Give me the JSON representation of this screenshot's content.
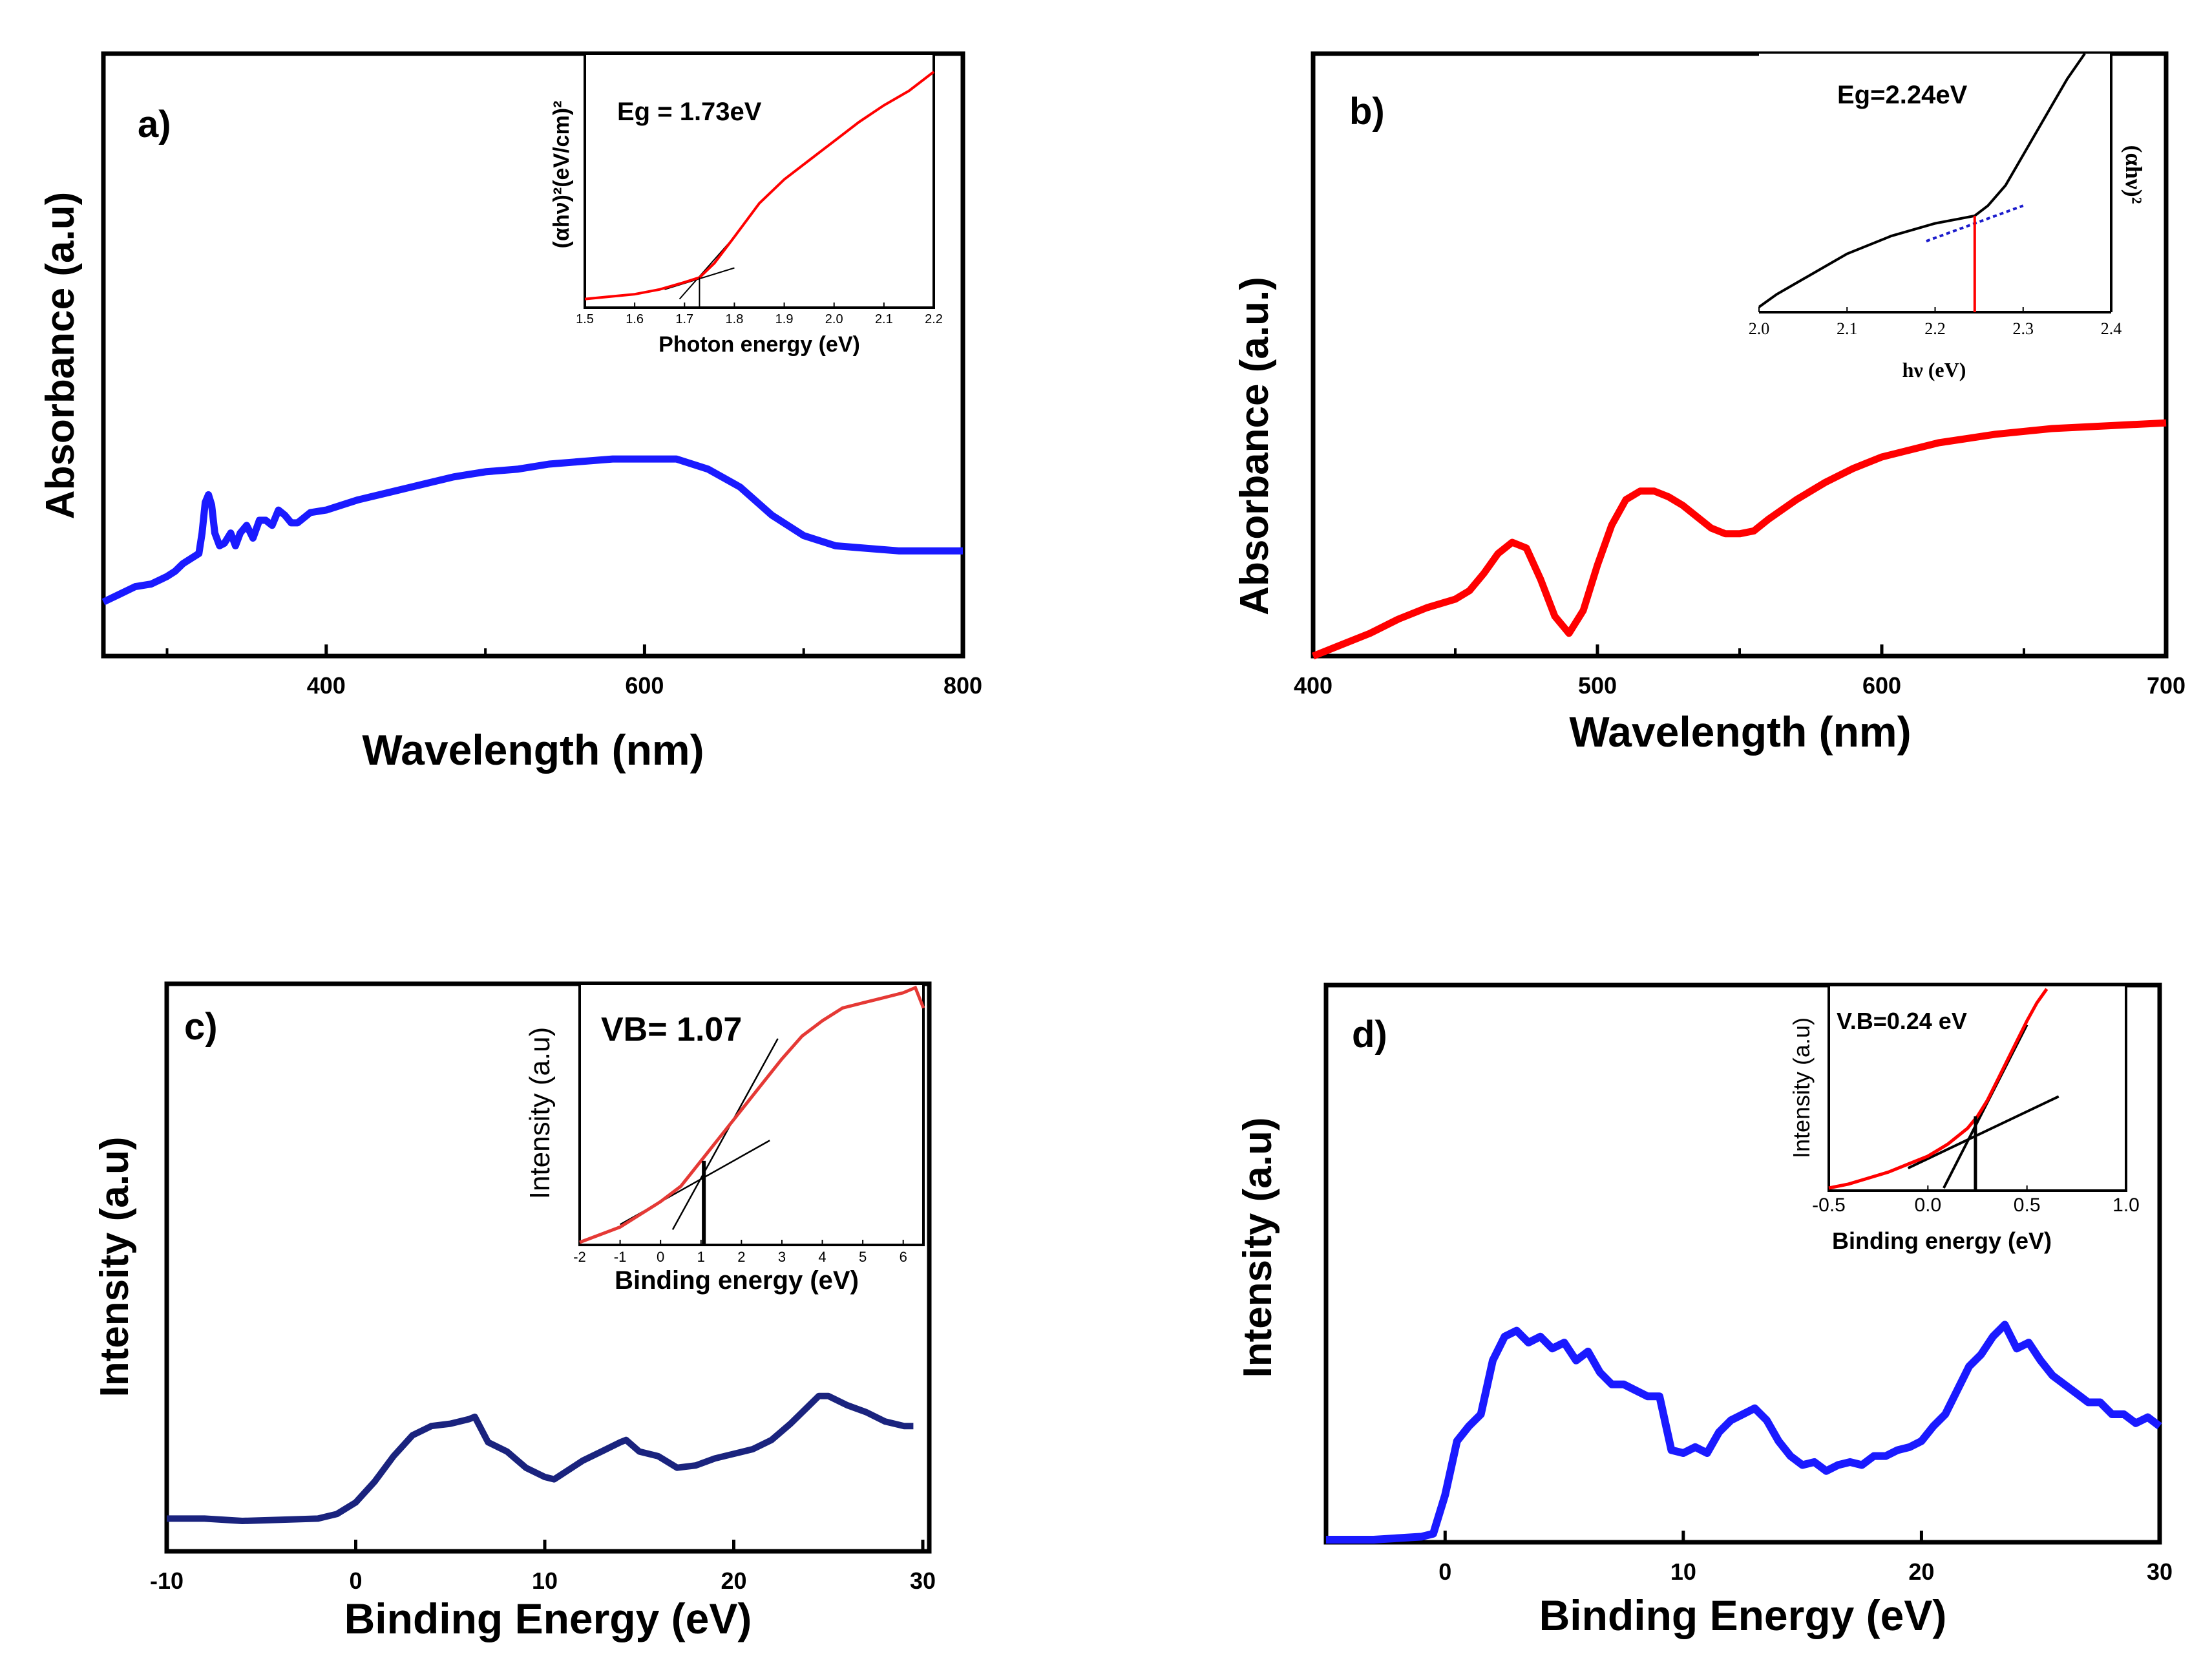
{
  "chart_data": [
    {
      "id": "a",
      "type": "line",
      "panel_label": "a)",
      "xlabel": "Wavelength (nm)",
      "ylabel": "Absorbance (a.u)",
      "xlim": [
        260,
        800
      ],
      "ylim": [
        0,
        1
      ],
      "xticks": [
        400,
        600,
        800
      ],
      "minor_xticks": [
        300,
        500,
        700
      ],
      "color": "#1a1aff",
      "series": [
        {
          "name": "absorbance",
          "x": [
            260,
            270,
            280,
            290,
            300,
            305,
            310,
            315,
            320,
            322,
            324,
            326,
            328,
            330,
            333,
            336,
            340,
            343,
            346,
            350,
            354,
            358,
            362,
            366,
            370,
            374,
            378,
            382,
            390,
            400,
            420,
            440,
            460,
            480,
            490,
            500,
            520,
            540,
            560,
            580,
            600,
            620,
            640,
            660,
            680,
            700,
            720,
            740,
            760,
            780,
            800
          ],
          "y": [
            0.06,
            0.09,
            0.12,
            0.13,
            0.16,
            0.18,
            0.21,
            0.23,
            0.25,
            0.33,
            0.45,
            0.48,
            0.44,
            0.33,
            0.28,
            0.29,
            0.33,
            0.28,
            0.33,
            0.36,
            0.31,
            0.38,
            0.38,
            0.36,
            0.42,
            0.4,
            0.37,
            0.37,
            0.41,
            0.42,
            0.46,
            0.49,
            0.52,
            0.55,
            0.56,
            0.57,
            0.58,
            0.6,
            0.61,
            0.62,
            0.62,
            0.62,
            0.58,
            0.51,
            0.4,
            0.32,
            0.28,
            0.27,
            0.26,
            0.26,
            0.26
          ]
        }
      ],
      "inset": {
        "xlabel": "Photon energy (eV)",
        "ylabel": "(αhν)²(eV/cm)²",
        "annotation": "Eg = 1.73eV",
        "xlim": [
          1.5,
          2.2
        ],
        "ylim": [
          0,
          1
        ],
        "xticks": [
          "1.5",
          "1.6",
          "1.7",
          "1.8",
          "1.9",
          "2.0",
          "2.1",
          "2.2"
        ],
        "eg": 1.73,
        "series": [
          {
            "name": "tauc",
            "color": "#ff0000",
            "x": [
              1.5,
              1.55,
              1.6,
              1.65,
              1.7,
              1.73,
              1.76,
              1.8,
              1.85,
              1.9,
              1.95,
              2.0,
              2.05,
              2.1,
              2.15,
              2.2
            ],
            "y": [
              0.02,
              0.03,
              0.04,
              0.06,
              0.09,
              0.11,
              0.17,
              0.28,
              0.42,
              0.52,
              0.6,
              0.68,
              0.76,
              0.83,
              0.89,
              0.97
            ]
          }
        ]
      }
    },
    {
      "id": "b",
      "type": "line",
      "panel_label": "b)",
      "xlabel": "Wavelength (nm)",
      "ylabel": "Absorbance (a.u.)",
      "xlim": [
        400,
        700
      ],
      "ylim": [
        0,
        1
      ],
      "xticks": [
        400,
        500,
        600,
        700
      ],
      "minor_xticks": [
        450,
        550,
        650
      ],
      "color": "#ff0000",
      "series": [
        {
          "name": "absorbance",
          "x": [
            400,
            410,
            420,
            430,
            440,
            450,
            455,
            460,
            465,
            470,
            475,
            480,
            485,
            490,
            495,
            500,
            505,
            510,
            515,
            520,
            525,
            530,
            535,
            540,
            545,
            550,
            555,
            560,
            570,
            580,
            590,
            600,
            620,
            640,
            660,
            680,
            700
          ],
          "y": [
            0.0,
            0.04,
            0.08,
            0.13,
            0.17,
            0.2,
            0.23,
            0.29,
            0.36,
            0.4,
            0.38,
            0.27,
            0.14,
            0.08,
            0.16,
            0.32,
            0.46,
            0.55,
            0.58,
            0.58,
            0.56,
            0.53,
            0.49,
            0.45,
            0.43,
            0.43,
            0.44,
            0.48,
            0.55,
            0.61,
            0.66,
            0.7,
            0.75,
            0.78,
            0.8,
            0.81,
            0.82
          ]
        }
      ],
      "inset": {
        "xlabel": "hν (eV)",
        "ylabel": "(αhν)²",
        "annotation": "Eg=2.24eV",
        "xlim": [
          2.0,
          2.4
        ],
        "ylim": [
          0,
          1
        ],
        "xticks": [
          "2.0",
          "2.1",
          "2.2",
          "2.3",
          "2.4"
        ],
        "eg": 2.245,
        "series": [
          {
            "name": "tauc",
            "color": "#000000",
            "x": [
              2.0,
              2.02,
              2.05,
              2.08,
              2.1,
              2.15,
              2.2,
              2.23,
              2.245,
              2.26,
              2.28,
              2.3,
              2.33,
              2.35,
              2.37
            ],
            "y": [
              0.0,
              0.05,
              0.11,
              0.17,
              0.21,
              0.28,
              0.33,
              0.35,
              0.36,
              0.4,
              0.48,
              0.6,
              0.78,
              0.9,
              1.0
            ]
          }
        ]
      }
    },
    {
      "id": "c",
      "type": "line",
      "panel_label": "c)",
      "xlabel": "Binding Energy (eV)",
      "ylabel": "Intensity (a.u)",
      "xlim": [
        -10,
        30
      ],
      "ylim": [
        0,
        1
      ],
      "xticks": [
        -10,
        0,
        10,
        20,
        30
      ],
      "color": "#1a237e",
      "series": [
        {
          "name": "intensity",
          "x": [
            -10,
            -8,
            -6,
            -4,
            -2,
            -1,
            0,
            1,
            2,
            3,
            4,
            5,
            6,
            6.3,
            7,
            8,
            9,
            10,
            10.5,
            12,
            13,
            14,
            14.3,
            15,
            16,
            17,
            18,
            19,
            20,
            21,
            22,
            23,
            24,
            24.5,
            25,
            26,
            27,
            28,
            29,
            29.5
          ],
          "y": [
            0.01,
            0.01,
            0.0,
            0.005,
            0.01,
            0.03,
            0.08,
            0.17,
            0.28,
            0.37,
            0.41,
            0.42,
            0.44,
            0.45,
            0.34,
            0.3,
            0.23,
            0.19,
            0.18,
            0.26,
            0.3,
            0.34,
            0.35,
            0.3,
            0.28,
            0.23,
            0.24,
            0.27,
            0.29,
            0.31,
            0.35,
            0.42,
            0.5,
            0.54,
            0.54,
            0.5,
            0.47,
            0.43,
            0.41,
            0.41
          ]
        }
      ],
      "inset": {
        "xlabel": "Binding energy (eV)",
        "ylabel": "Intensity (a.u)",
        "annotation": "VB= 1.07",
        "xlim": [
          -2,
          6.5
        ],
        "ylim": [
          0,
          1
        ],
        "xticks": [
          "-2",
          "-1",
          "0",
          "1",
          "2",
          "3",
          "4",
          "5",
          "6"
        ],
        "eg": 1.07,
        "series": [
          {
            "name": "vb",
            "color": "#e53935",
            "x": [
              -2,
              -1,
              0,
              0.5,
              1,
              1.5,
              2,
              2.5,
              3,
              3.5,
              4,
              4.5,
              5,
              5.5,
              6,
              6.3,
              6.5
            ],
            "y": [
              0.0,
              0.06,
              0.16,
              0.22,
              0.32,
              0.42,
              0.52,
              0.62,
              0.72,
              0.81,
              0.87,
              0.92,
              0.94,
              0.96,
              0.98,
              1.0,
              0.92
            ]
          }
        ]
      }
    },
    {
      "id": "d",
      "type": "line",
      "panel_label": "d)",
      "xlabel": "Binding Energy (eV)",
      "ylabel": "Intensity (a.u)",
      "xlim": [
        -5,
        30
      ],
      "ylim": [
        0,
        1
      ],
      "xticks": [
        0,
        10,
        20,
        30
      ],
      "color": "#1a1aff",
      "series": [
        {
          "name": "intensity",
          "x": [
            -5,
            -3,
            -1,
            -0.5,
            0,
            0.5,
            1,
            1.5,
            2,
            2.5,
            3,
            3.5,
            4,
            4.5,
            5,
            5.5,
            6,
            6.5,
            7,
            7.5,
            8,
            8.5,
            9,
            9.5,
            10,
            10.5,
            11,
            11.5,
            12,
            12.5,
            13,
            13.5,
            14,
            14.5,
            15,
            15.5,
            16,
            16.5,
            17,
            17.5,
            18,
            18.5,
            19,
            19.5,
            20,
            20.5,
            21,
            21.5,
            22,
            22.5,
            23,
            23.5,
            24,
            24.5,
            25,
            25.5,
            26,
            26.5,
            27,
            27.5,
            28,
            28.5,
            29,
            29.5,
            30
          ],
          "y": [
            0.0,
            0.0,
            0.01,
            0.02,
            0.15,
            0.33,
            0.38,
            0.42,
            0.6,
            0.68,
            0.7,
            0.66,
            0.68,
            0.64,
            0.66,
            0.6,
            0.63,
            0.56,
            0.52,
            0.52,
            0.5,
            0.48,
            0.48,
            0.3,
            0.29,
            0.31,
            0.29,
            0.36,
            0.4,
            0.42,
            0.44,
            0.4,
            0.33,
            0.28,
            0.25,
            0.26,
            0.23,
            0.25,
            0.26,
            0.25,
            0.28,
            0.28,
            0.3,
            0.31,
            0.33,
            0.38,
            0.42,
            0.5,
            0.58,
            0.62,
            0.68,
            0.72,
            0.64,
            0.66,
            0.6,
            0.55,
            0.52,
            0.49,
            0.46,
            0.46,
            0.42,
            0.42,
            0.39,
            0.41,
            0.38
          ]
        }
      ],
      "inset": {
        "xlabel": "Binding energy (eV)",
        "ylabel": "Intensity (a.u)",
        "annotation": "V.B=0.24 eV",
        "xlim": [
          -0.5,
          1.0
        ],
        "ylim": [
          0,
          1
        ],
        "xticks": [
          "-0.5",
          "0.0",
          "0.5",
          "1.0"
        ],
        "eg": 0.24,
        "series": [
          {
            "name": "vb",
            "color": "#ff0000",
            "x": [
              -0.5,
              -0.4,
              -0.3,
              -0.2,
              -0.1,
              0.0,
              0.1,
              0.2,
              0.25,
              0.3,
              0.35,
              0.4,
              0.45,
              0.5,
              0.55,
              0.6
            ],
            "y": [
              0.0,
              0.02,
              0.05,
              0.08,
              0.12,
              0.16,
              0.22,
              0.3,
              0.36,
              0.44,
              0.54,
              0.64,
              0.74,
              0.84,
              0.93,
              1.0
            ]
          }
        ]
      }
    }
  ]
}
